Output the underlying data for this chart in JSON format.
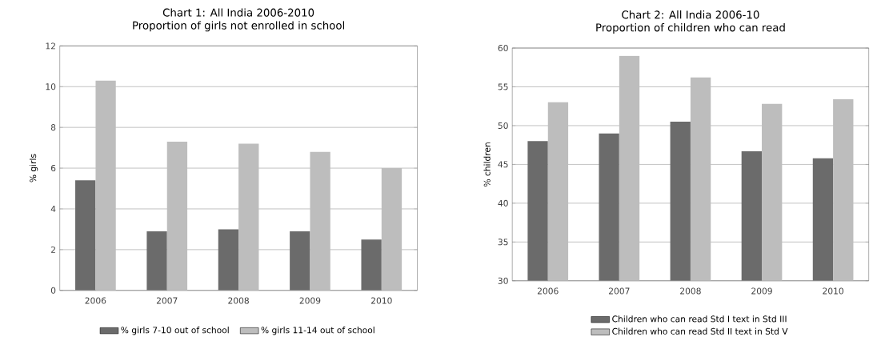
{
  "chart_data": [
    {
      "type": "bar",
      "title": "Chart 1: All India 2006-2010",
      "subtitle": "Proportion of girls not enrolled in school",
      "ylabel": "% girls",
      "categories": [
        "2006",
        "2007",
        "2008",
        "2009",
        "2010"
      ],
      "series": [
        {
          "name": "% girls 7-10 out of school",
          "color": "#6b6b6b",
          "values": [
            5.4,
            2.9,
            3.0,
            2.9,
            2.5
          ]
        },
        {
          "name": "% girls 11-14 out of school",
          "color": "#bdbdbd",
          "values": [
            10.3,
            7.3,
            7.2,
            6.8,
            6.0
          ]
        }
      ],
      "ylim": [
        0,
        12
      ],
      "yticks": [
        0,
        2,
        4,
        6,
        8,
        10,
        12
      ],
      "grid": "y",
      "legend": "bottom"
    },
    {
      "type": "bar",
      "title": "Chart 2: All India 2006-10",
      "subtitle": "Proportion of children who can read",
      "ylabel": "% children",
      "categories": [
        "2006",
        "2007",
        "2008",
        "2009",
        "2010"
      ],
      "series": [
        {
          "name": "Children who can read Std I text in Std III",
          "color": "#6b6b6b",
          "values": [
            48,
            49,
            50.5,
            46.7,
            45.8
          ]
        },
        {
          "name": "Children who can read Std II text in Std V",
          "color": "#bdbdbd",
          "values": [
            53,
            59,
            56.2,
            52.8,
            53.4
          ]
        }
      ],
      "ylim": [
        30,
        60
      ],
      "yticks": [
        30,
        35,
        40,
        45,
        50,
        55,
        60
      ],
      "grid": "y",
      "legend": "bottom"
    }
  ]
}
